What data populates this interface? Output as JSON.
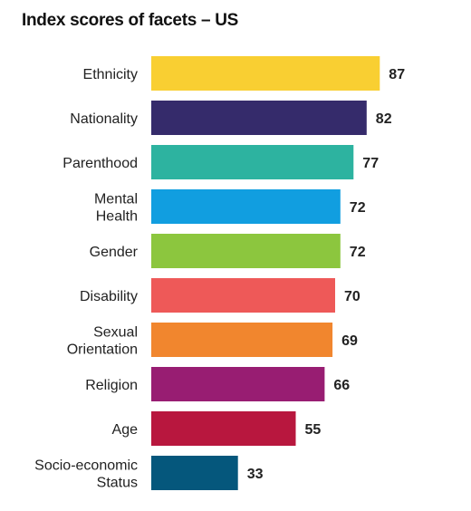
{
  "chart_data": {
    "type": "bar",
    "orientation": "horizontal",
    "title": "Index scores of facets – US",
    "categories": [
      [
        "Ethnicity"
      ],
      [
        "Nationality"
      ],
      [
        "Parenthood"
      ],
      [
        "Mental",
        "Health"
      ],
      [
        "Gender"
      ],
      [
        "Disability"
      ],
      [
        "Sexual",
        "Orientation"
      ],
      [
        "Religion"
      ],
      [
        "Age"
      ],
      [
        "Socio-economic",
        "Status"
      ]
    ],
    "values": [
      87,
      82,
      77,
      72,
      72,
      70,
      69,
      66,
      55,
      33
    ],
    "colors": [
      "#f9cf32",
      "#352b6b",
      "#2db3a0",
      "#119ee0",
      "#8cc63e",
      "#ee5958",
      "#f1862e",
      "#981d72",
      "#b8173e",
      "#05577c"
    ],
    "xlim": [
      0,
      100
    ],
    "grid": false,
    "legend": false
  }
}
